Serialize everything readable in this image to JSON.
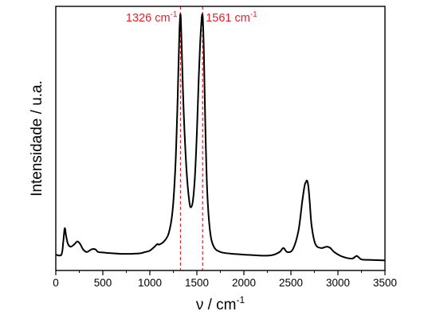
{
  "chart_data": {
    "type": "line",
    "title": "",
    "xlabel": "ν / cm",
    "xlabel_sup": "-1",
    "ylabel": "Intensidade / u.a.",
    "xlim": [
      0,
      3500
    ],
    "ylim": [
      0,
      100
    ],
    "y_ticks_shown": false,
    "x_ticks": [
      0,
      500,
      1000,
      1500,
      2000,
      2500,
      3000,
      3500
    ],
    "grid": false,
    "legend": "none",
    "series": [
      {
        "color": "#000000",
        "x": [
          0,
          60,
          80,
          95,
          110,
          130,
          160,
          200,
          230,
          260,
          290,
          330,
          380,
          420,
          450,
          500,
          600,
          700,
          800,
          900,
          950,
          1000,
          1050,
          1080,
          1100,
          1150,
          1200,
          1240,
          1270,
          1290,
          1305,
          1315,
          1322,
          1326,
          1330,
          1340,
          1360,
          1390,
          1420,
          1440,
          1460,
          1480,
          1500,
          1520,
          1535,
          1550,
          1557,
          1561,
          1565,
          1575,
          1590,
          1610,
          1640,
          1680,
          1750,
          1850,
          2000,
          2100,
          2200,
          2300,
          2380,
          2420,
          2460,
          2520,
          2580,
          2620,
          2645,
          2660,
          2672,
          2685,
          2700,
          2720,
          2760,
          2820,
          2880,
          2920,
          2960,
          3050,
          3150,
          3200,
          3250,
          3350,
          3500
        ],
        "y": [
          6,
          6,
          11,
          16,
          13,
          10,
          9,
          10,
          11,
          10,
          8,
          7,
          8,
          8,
          7,
          6.8,
          6.5,
          6.3,
          6.3,
          6.5,
          7,
          7.5,
          9,
          10,
          9.8,
          11,
          14,
          22,
          38,
          58,
          78,
          91,
          96,
          97,
          95,
          83,
          60,
          38,
          26,
          24,
          27,
          36,
          52,
          73,
          86,
          95,
          97,
          96.5,
          94,
          82,
          55,
          30,
          15,
          9,
          7,
          6.4,
          6,
          5.8,
          5.6,
          5.8,
          7,
          8.5,
          7,
          8,
          15,
          26,
          32,
          33.5,
          34,
          32,
          26,
          17,
          10,
          8.5,
          9,
          8.5,
          7,
          5.2,
          4.5,
          5.5,
          4.2,
          4,
          3.8
        ]
      }
    ],
    "annotations": [
      {
        "x": 1326,
        "text": "1326 cm",
        "sup": "-1",
        "color": "#e8202a"
      },
      {
        "x": 1561,
        "text": "1561 cm",
        "sup": "-1",
        "color": "#e8202a"
      }
    ]
  }
}
